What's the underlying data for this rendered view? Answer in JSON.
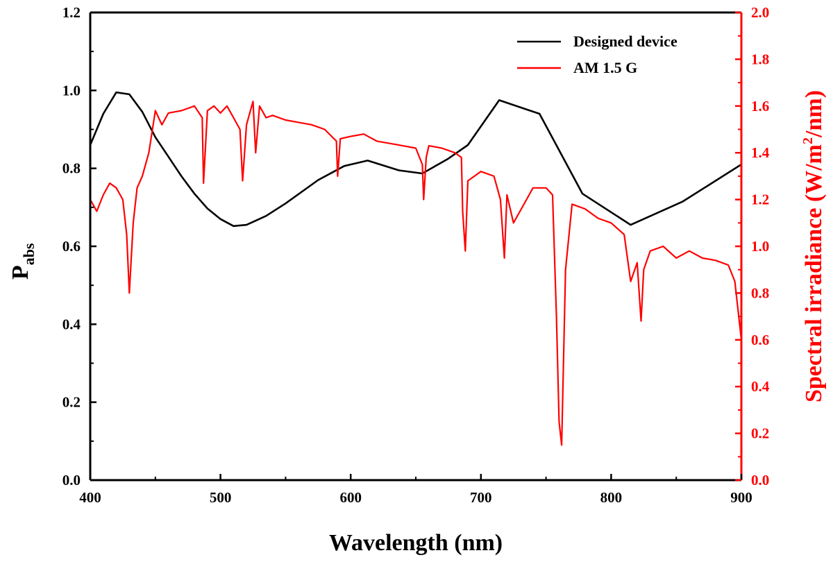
{
  "chart_data": {
    "type": "line",
    "xlabel": "Wavelength (nm)",
    "ylabel_main": "P",
    "ylabel_sub": "abs",
    "y2label_pre": "Spectral irradiance (W/m",
    "y2label_sup": "2",
    "y2label_post": "/nm)",
    "xlim": [
      400,
      900
    ],
    "ylim": [
      0,
      1.2
    ],
    "y2lim": [
      0,
      2.0
    ],
    "xticks": [
      "400",
      "500",
      "600",
      "700",
      "800",
      "900"
    ],
    "yticks": [
      "0.0",
      "0.2",
      "0.4",
      "0.6",
      "0.8",
      "1.0",
      "1.2"
    ],
    "y2ticks": [
      "0.0",
      "0.2",
      "0.4",
      "0.6",
      "0.8",
      "1.0",
      "1.2",
      "1.4",
      "1.6",
      "1.8",
      "2.0"
    ],
    "legend_position": "top-right",
    "colors": {
      "device": "#000000",
      "am15": "#ff0000",
      "right_axis": "#ff0000"
    },
    "series": [
      {
        "name": "Designed device",
        "axis": "left",
        "x": [
          400,
          410,
          420,
          430,
          440,
          450,
          460,
          470,
          480,
          490,
          500,
          510,
          520,
          535,
          550,
          575,
          595,
          613,
          637,
          655,
          675,
          690,
          714,
          745,
          778,
          815,
          855,
          900
        ],
        "y": [
          0.86,
          0.94,
          0.995,
          0.99,
          0.945,
          0.88,
          0.83,
          0.78,
          0.735,
          0.697,
          0.67,
          0.652,
          0.655,
          0.678,
          0.71,
          0.77,
          0.806,
          0.82,
          0.795,
          0.787,
          0.825,
          0.86,
          0.975,
          0.94,
          0.735,
          0.655,
          0.715,
          0.81
        ]
      },
      {
        "name": "AM 1.5 G",
        "axis": "right",
        "x": [
          400,
          405,
          410,
          415,
          420,
          425,
          428,
          430,
          433,
          436,
          440,
          445,
          450,
          455,
          460,
          470,
          480,
          486,
          487,
          490,
          495,
          500,
          505,
          510,
          515,
          517,
          520,
          525,
          527,
          530,
          535,
          540,
          550,
          560,
          570,
          580,
          589,
          590,
          592,
          600,
          610,
          620,
          630,
          640,
          650,
          655,
          656,
          658,
          660,
          670,
          680,
          685,
          686,
          688,
          690,
          700,
          710,
          715,
          718,
          720,
          725,
          730,
          735,
          740,
          750,
          755,
          758,
          760,
          762,
          765,
          770,
          780,
          790,
          800,
          810,
          815,
          820,
          823,
          825,
          830,
          840,
          850,
          860,
          870,
          880,
          890,
          895,
          900
        ],
        "y": [
          1.2,
          1.15,
          1.22,
          1.27,
          1.25,
          1.2,
          1.05,
          0.8,
          1.1,
          1.25,
          1.3,
          1.4,
          1.58,
          1.52,
          1.57,
          1.58,
          1.6,
          1.55,
          1.27,
          1.58,
          1.6,
          1.57,
          1.6,
          1.55,
          1.5,
          1.28,
          1.52,
          1.62,
          1.4,
          1.6,
          1.55,
          1.56,
          1.54,
          1.53,
          1.52,
          1.5,
          1.45,
          1.3,
          1.46,
          1.47,
          1.48,
          1.45,
          1.44,
          1.43,
          1.42,
          1.35,
          1.2,
          1.38,
          1.43,
          1.42,
          1.4,
          1.38,
          1.15,
          0.98,
          1.28,
          1.32,
          1.3,
          1.2,
          0.95,
          1.22,
          1.1,
          1.15,
          1.2,
          1.25,
          1.25,
          1.22,
          0.7,
          0.25,
          0.15,
          0.9,
          1.18,
          1.16,
          1.12,
          1.1,
          1.05,
          0.85,
          0.93,
          0.68,
          0.9,
          0.98,
          1.0,
          0.95,
          0.98,
          0.95,
          0.94,
          0.92,
          0.85,
          0.6
        ]
      }
    ]
  }
}
